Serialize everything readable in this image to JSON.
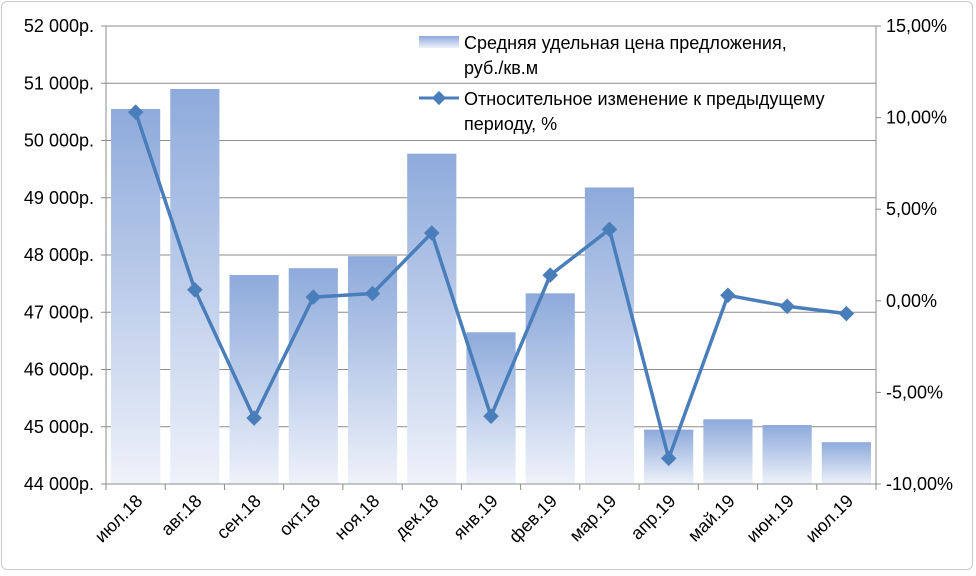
{
  "chart_data": {
    "type": "bar+line",
    "categories": [
      "июл.18",
      "авг.18",
      "сен.18",
      "окт.18",
      "ноя.18",
      "дек.18",
      "янв.19",
      "фев.19",
      "мар.19",
      "апр.19",
      "май.19",
      "июн.19",
      "июл.19"
    ],
    "series": [
      {
        "name": "Средняя удельная цена предложения, руб./кв.м",
        "type": "bar",
        "axis": "left",
        "values": [
          50550,
          50900,
          47650,
          47770,
          47980,
          49770,
          46650,
          47330,
          49180,
          44950,
          45130,
          45030,
          44730
        ]
      },
      {
        "name": "Относительное изменение к предыдущему периоду, %",
        "type": "line",
        "axis": "right",
        "values": [
          10.3,
          0.6,
          -6.4,
          0.2,
          0.4,
          3.7,
          -6.3,
          1.4,
          3.9,
          -8.6,
          0.3,
          -0.3,
          -0.7
        ]
      }
    ],
    "left_axis": {
      "ylim": [
        44000,
        52000
      ],
      "ticks": [
        44000,
        45000,
        46000,
        47000,
        48000,
        49000,
        50000,
        51000,
        52000
      ],
      "tick_labels": [
        "44 000р.",
        "45 000р.",
        "46 000р.",
        "47 000р.",
        "48 000р.",
        "49 000р.",
        "50 000р.",
        "51 000р.",
        "52 000р."
      ]
    },
    "right_axis": {
      "ylim": [
        -10,
        15
      ],
      "ticks": [
        -10,
        -5,
        0,
        5,
        10,
        15
      ],
      "tick_labels": [
        "-10,00%",
        "-5,00%",
        "0,00%",
        "5,00%",
        "10,00%",
        "15,00%"
      ]
    },
    "legend": {
      "position": "top-right",
      "bar_label_lines": [
        "Средняя удельная цена предложения,",
        "руб./кв.м"
      ],
      "line_label_lines": [
        "Относительное изменение  к предыдущему",
        "периоду, %"
      ]
    },
    "grid": true,
    "colors": {
      "bar_top": "#8eaadb",
      "bar_bottom": "#e9eef9",
      "line": "#4a7ebb",
      "grid": "#8c8c8c"
    }
  }
}
